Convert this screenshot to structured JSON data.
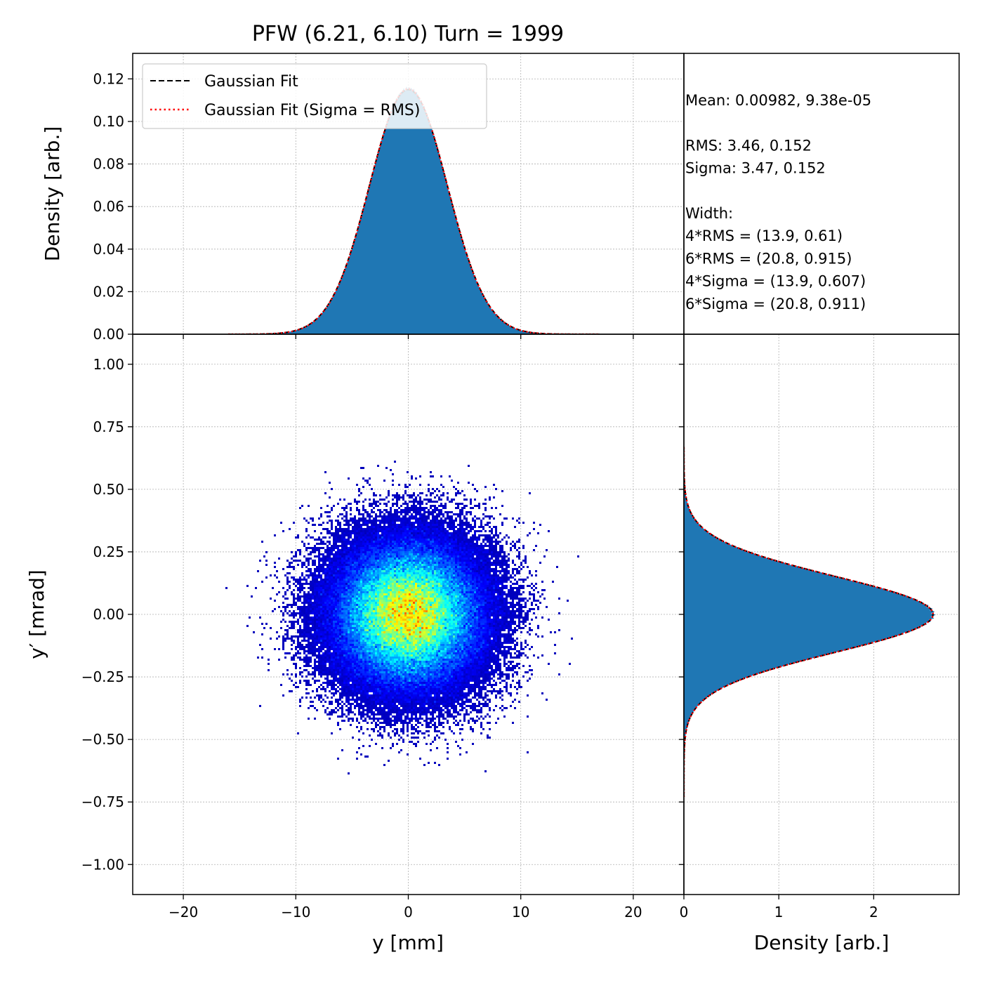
{
  "chart_data": [
    {
      "panel": "top-histogram",
      "type": "area",
      "title": "PFW (6.21, 6.10) Turn = 1999",
      "ylabel": "Density [arb.]",
      "xlim": [
        -24.5,
        24.5
      ],
      "ylim": [
        0.0,
        0.132
      ],
      "yticks": [
        0.0,
        0.02,
        0.04,
        0.06,
        0.08,
        0.1,
        0.12
      ],
      "ytick_labels": [
        "0.00",
        "0.02",
        "0.04",
        "0.06",
        "0.08",
        "0.10",
        "0.12"
      ],
      "grid": true,
      "legend_placement": "top-left",
      "series": [
        {
          "name": "Gaussian Fit",
          "type": "line",
          "style": "dashed",
          "color": "#000000",
          "mean": 0.00982,
          "sigma": 3.47
        },
        {
          "name": "Gaussian Fit (Sigma = RMS)",
          "type": "line",
          "style": "dotted",
          "color": "#ff0000",
          "mean": 0.00982,
          "sigma": 3.46
        },
        {
          "type": "histogram",
          "color": "#1f77b4",
          "mean": 0.00982,
          "sigma": 3.46,
          "range": [
            -16,
            17
          ]
        }
      ]
    },
    {
      "panel": "scatter-density",
      "type": "heatmap",
      "xlabel": "y [mm]",
      "ylabel": "y′ [mrad]",
      "xlim": [
        -24.5,
        24.5
      ],
      "ylim": [
        -1.12,
        1.12
      ],
      "xticks": [
        -20,
        -10,
        0,
        10,
        20
      ],
      "xtick_labels": [
        "−20",
        "−10",
        "0",
        "10",
        "20"
      ],
      "yticks": [
        -1.0,
        -0.75,
        -0.5,
        -0.25,
        0.0,
        0.25,
        0.5,
        0.75,
        1.0
      ],
      "ytick_labels": [
        "−1.00",
        "−0.75",
        "−0.50",
        "−0.25",
        "0.00",
        "0.25",
        "0.50",
        "0.75",
        "1.00"
      ],
      "grid": true,
      "colormap": "jet",
      "distribution": {
        "mean_x": 0.00982,
        "mean_y": 9.38e-05,
        "sigma_x": 3.46,
        "sigma_y": 0.152
      }
    },
    {
      "panel": "right-histogram",
      "type": "area",
      "xlabel": "Density [arb.]",
      "xlim": [
        0,
        2.9
      ],
      "xticks": [
        0,
        1,
        2
      ],
      "xtick_labels": [
        "0",
        "1",
        "2"
      ],
      "ylim": [
        -1.12,
        1.12
      ],
      "grid": true,
      "series": [
        {
          "type": "histogram",
          "color": "#1f77b4",
          "mean": 9.38e-05,
          "sigma": 0.152,
          "range": [
            -0.73,
            0.67
          ]
        },
        {
          "type": "line",
          "style": "dashed",
          "color": "#000000",
          "mean": 9.38e-05,
          "sigma": 0.152
        },
        {
          "type": "line",
          "style": "dotted",
          "color": "#ff0000",
          "mean": 9.38e-05,
          "sigma": 0.152
        }
      ]
    }
  ],
  "stats_text": [
    "Mean: 0.00982, 9.38e-05",
    "",
    "RMS: 3.46, 0.152",
    "Sigma: 3.47, 0.152",
    "",
    "Width:",
    "4*RMS = (13.9, 0.61)",
    "6*RMS = (20.8, 0.915)",
    "4*Sigma = (13.9, 0.607)",
    "6*Sigma = (20.8, 0.911)"
  ],
  "colors": {
    "hist": "#1f77b4",
    "fit": "#000000",
    "fit_rms": "#ff0000",
    "grid": "#b0b0b0"
  }
}
